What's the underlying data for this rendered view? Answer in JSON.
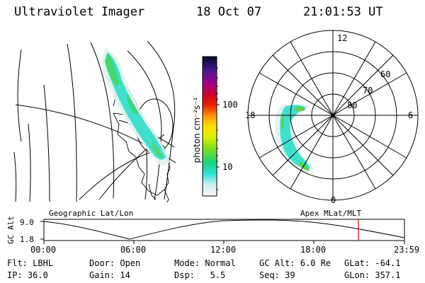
{
  "header": {
    "instrument": "Ultraviolet Imager",
    "date": "18 Oct 07",
    "time": "21:01:53 UT"
  },
  "colorbar": {
    "unit_label": "photon cm⁻²s⁻¹",
    "ticks": [
      "100",
      "10"
    ]
  },
  "polar_plot": {
    "mlt_labels": {
      "top": "12",
      "left": "18",
      "right": "6",
      "bottom": "0"
    },
    "lat_labels": [
      "60",
      "70",
      "80"
    ]
  },
  "panel_labels": {
    "geographic": "Geographic Lat/Lon",
    "magnetic": "Apex MLat/MLT"
  },
  "altitude_plot": {
    "ylabel": "GC Alt",
    "yticks": [
      "9.0",
      "1.8"
    ],
    "xticks": [
      "00:00",
      "06:00",
      "12:00",
      "18:00",
      "23:59"
    ],
    "marker_color": "#e00000"
  },
  "status": {
    "row1": [
      {
        "label": "Flt:",
        "value": "LBHL"
      },
      {
        "label": "Door:",
        "value": "Open"
      },
      {
        "label": "Mode:",
        "value": "Normal"
      },
      {
        "label": "GC Alt:",
        "value": "6.0 Re"
      },
      {
        "label": "GLat:",
        "value": "-64.1"
      }
    ],
    "row2": [
      {
        "label": "IP:",
        "value": "36.0"
      },
      {
        "label": "Gain:",
        "value": "14"
      },
      {
        "label": "Dsp:",
        "value": "5.5"
      },
      {
        "label": "Seq:",
        "value": "39"
      },
      {
        "label": "GLon:",
        "value": "357.1"
      }
    ]
  }
}
